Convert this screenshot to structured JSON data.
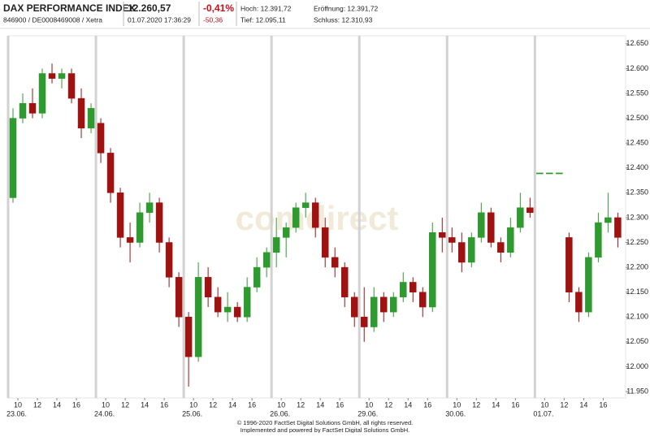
{
  "header": {
    "title": "DAX PERFORMANCE INDEX",
    "id": "846900 / DE0008469008 / Xetra",
    "price": "12.260,57",
    "time": "01.07.2020 17:36:29",
    "change_pct": "-0,41%",
    "change_abs": "-50,36",
    "high": "Hoch: 12.391,72",
    "open": "Eröffnung: 12.391,72",
    "low": "Tief: 12.095,11",
    "close": "Schluss: 12.310,93"
  },
  "watermark": "comdirect",
  "footer": [
    "© 1996-2020 FactSet Digital Solutions GmbH, all rights reserved.",
    "Implemented and powered by FactSet Digital Solutions GmbH."
  ],
  "chart_data": {
    "type": "candlestick",
    "up_color": "#2f9a2f",
    "down_color": "#9e1212",
    "grid": false,
    "xlim": [
      0,
      63.3
    ],
    "ylim": [
      11937,
      12666
    ],
    "yticks": [
      {
        "value": 11950,
        "label": "11.950"
      },
      {
        "value": 12000,
        "label": "12.000"
      },
      {
        "value": 12050,
        "label": "12.050"
      },
      {
        "value": 12100,
        "label": "12.100"
      },
      {
        "value": 12150,
        "label": "12.150"
      },
      {
        "value": 12200,
        "label": "12.200"
      },
      {
        "value": 12250,
        "label": "12.250"
      },
      {
        "value": 12300,
        "label": "12.300"
      },
      {
        "value": 12350,
        "label": "12.350"
      },
      {
        "value": 12400,
        "label": "12.400"
      },
      {
        "value": 12450,
        "label": "12.450"
      },
      {
        "value": 12500,
        "label": "12.500"
      },
      {
        "value": 12550,
        "label": "12.550"
      },
      {
        "value": 12600,
        "label": "12.600"
      },
      {
        "value": 12650,
        "label": "12.650"
      }
    ],
    "xticks": [
      {
        "value": 1,
        "label": "10"
      },
      {
        "value": 3,
        "label": "12"
      },
      {
        "value": 5,
        "label": "14"
      },
      {
        "value": 7,
        "label": "16"
      },
      {
        "value": 10,
        "label": "10"
      },
      {
        "value": 12,
        "label": "12"
      },
      {
        "value": 14,
        "label": "14"
      },
      {
        "value": 16,
        "label": "16"
      },
      {
        "value": 19,
        "label": "10"
      },
      {
        "value": 21,
        "label": "12"
      },
      {
        "value": 23,
        "label": "14"
      },
      {
        "value": 25,
        "label": "16"
      },
      {
        "value": 28,
        "label": "10"
      },
      {
        "value": 30,
        "label": "12"
      },
      {
        "value": 32,
        "label": "14"
      },
      {
        "value": 34,
        "label": "16"
      },
      {
        "value": 37,
        "label": "10"
      },
      {
        "value": 39,
        "label": "12"
      },
      {
        "value": 41,
        "label": "14"
      },
      {
        "value": 43,
        "label": "16"
      },
      {
        "value": 46,
        "label": "10"
      },
      {
        "value": 48,
        "label": "12"
      },
      {
        "value": 50,
        "label": "14"
      },
      {
        "value": 52,
        "label": "16"
      },
      {
        "value": 55,
        "label": "10"
      },
      {
        "value": 57,
        "label": "12"
      },
      {
        "value": 59,
        "label": "14"
      },
      {
        "value": 61,
        "label": "16"
      }
    ],
    "date_ticks": [
      {
        "value": 0,
        "label": "23.06."
      },
      {
        "value": 9,
        "label": "24.06."
      },
      {
        "value": 18,
        "label": "25.06."
      },
      {
        "value": 27,
        "label": "26.06."
      },
      {
        "value": 36,
        "label": "29.06."
      },
      {
        "value": 45,
        "label": "30.06."
      },
      {
        "value": 54,
        "label": "01.07."
      }
    ],
    "x": [
      0.5,
      1.5,
      2.5,
      3.5,
      4.5,
      5.5,
      6.5,
      7.5,
      8.5,
      9.5,
      10.5,
      11.5,
      12.5,
      13.5,
      14.5,
      15.5,
      16.5,
      17.5,
      18.5,
      19.5,
      20.5,
      21.5,
      22.5,
      23.5,
      24.5,
      25.5,
      26.5,
      27.5,
      28.5,
      29.5,
      30.5,
      31.5,
      32.5,
      33.5,
      34.5,
      35.5,
      36.5,
      37.5,
      38.5,
      39.5,
      40.5,
      41.5,
      42.5,
      43.5,
      44.5,
      45.5,
      46.5,
      47.5,
      48.5,
      49.5,
      50.5,
      51.5,
      52.5,
      53.5,
      54.5,
      55.5,
      56.5,
      57.5,
      58.5,
      59.5,
      60.5,
      61.5,
      62.5
    ],
    "open": [
      12340,
      12500,
      12530,
      12510,
      12590,
      12580,
      12590,
      12540,
      12480,
      12490,
      12430,
      12350,
      12260,
      12250,
      12310,
      12330,
      12250,
      12180,
      12100,
      12020,
      12180,
      12140,
      12110,
      12120,
      12100,
      12160,
      12200,
      12230,
      12260,
      12280,
      12320,
      12330,
      12280,
      12220,
      12200,
      12140,
      12100,
      12080,
      12140,
      12110,
      12140,
      12170,
      12150,
      12120,
      12270,
      12260,
      12250,
      12210,
      12260,
      12310,
      12250,
      12230,
      12280,
      12320,
      12390,
      12390,
      12390,
      12260,
      12150,
      12110,
      12220,
      12290,
      12300
    ],
    "high": [
      12520,
      12550,
      12560,
      12600,
      12610,
      12600,
      12600,
      12560,
      12530,
      12500,
      12440,
      12360,
      12290,
      12330,
      12350,
      12340,
      12260,
      12190,
      12110,
      12210,
      12200,
      12160,
      12150,
      12130,
      12180,
      12220,
      12240,
      12300,
      12290,
      12330,
      12350,
      12340,
      12300,
      12240,
      12210,
      12150,
      12160,
      12160,
      12150,
      12150,
      12190,
      12180,
      12160,
      12290,
      12300,
      12280,
      12270,
      12270,
      12330,
      12320,
      12260,
      12300,
      12350,
      12340,
      12390,
      12390,
      12390,
      12270,
      12160,
      12230,
      12310,
      12350,
      12310
    ],
    "low": [
      12330,
      12490,
      12500,
      12500,
      12570,
      12560,
      12530,
      12460,
      12470,
      12410,
      12330,
      12240,
      12210,
      12240,
      12290,
      12230,
      12160,
      12080,
      11960,
      12010,
      12120,
      12100,
      12090,
      12090,
      12090,
      12150,
      12180,
      12200,
      12220,
      12270,
      12300,
      12260,
      12200,
      12180,
      12120,
      12080,
      12050,
      12070,
      12090,
      12100,
      12130,
      12130,
      12100,
      12110,
      12230,
      12230,
      12190,
      12200,
      12250,
      12240,
      12210,
      12220,
      12270,
      12300,
      12390,
      12390,
      12390,
      12130,
      12090,
      12100,
      12210,
      12270,
      12240
    ],
    "close": [
      12500,
      12530,
      12510,
      12590,
      12580,
      12590,
      12540,
      12480,
      12520,
      12430,
      12350,
      12260,
      12250,
      12310,
      12330,
      12250,
      12180,
      12100,
      12020,
      12180,
      12140,
      12110,
      12120,
      12100,
      12160,
      12200,
      12230,
      12260,
      12280,
      12320,
      12330,
      12280,
      12220,
      12200,
      12140,
      12100,
      12080,
      12140,
      12110,
      12140,
      12170,
      12150,
      12120,
      12270,
      12260,
      12250,
      12210,
      12260,
      12310,
      12250,
      12230,
      12280,
      12320,
      12310,
      12390,
      12390,
      12390,
      12150,
      12110,
      12220,
      12290,
      12300,
      12260
    ]
  }
}
